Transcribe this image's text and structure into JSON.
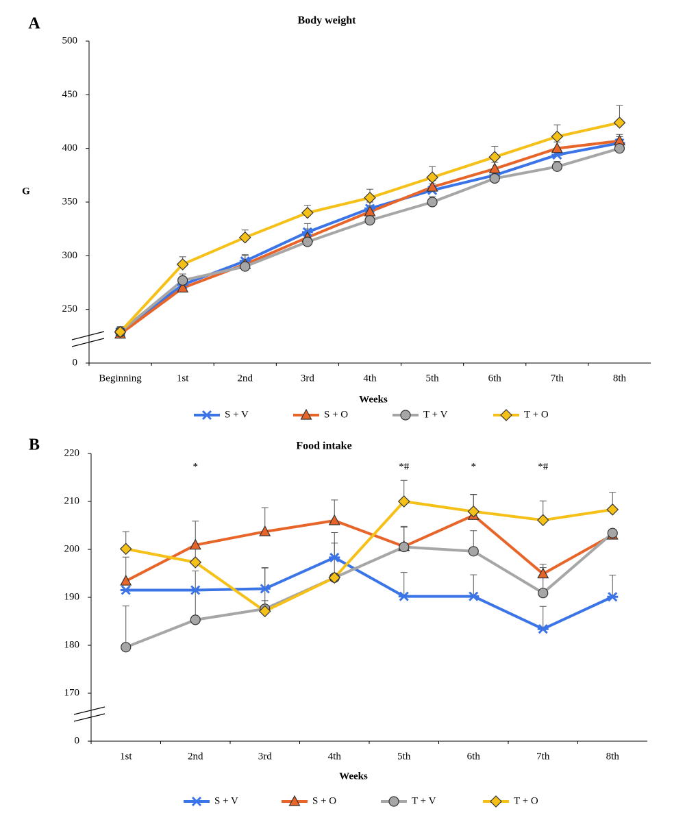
{
  "chart_data": [
    {
      "type": "line",
      "panel": "A",
      "title": "Body weight",
      "y_label": "G",
      "x_label": "Weeks",
      "categories": [
        "Beginning",
        "1st",
        "2nd",
        "3rd",
        "4th",
        "5th",
        "6th",
        "7th",
        "8th"
      ],
      "ylim": [
        0,
        500
      ],
      "yticks": [
        0,
        250,
        300,
        350,
        400,
        450,
        500
      ],
      "y_break": true,
      "grid": false,
      "series": [
        {
          "name": "S + V",
          "color": "#3b74e6",
          "marker": "asterisk",
          "values": [
            229,
            273,
            295,
            322,
            344,
            361,
            375,
            394,
            405
          ],
          "errors": [
            5,
            5,
            6,
            8,
            6,
            6,
            6,
            6,
            6
          ]
        },
        {
          "name": "S + O",
          "color": "#e8652a",
          "marker": "triangle",
          "values": [
            227,
            270,
            292,
            317,
            341,
            364,
            381,
            400,
            407
          ],
          "errors": [
            3,
            4,
            8,
            8,
            6,
            6,
            6,
            6,
            6
          ]
        },
        {
          "name": "T + V",
          "color": "#a6a6a6",
          "marker": "circle",
          "values": [
            229,
            277,
            290,
            313,
            333,
            350,
            372,
            383,
            400
          ],
          "errors": [
            4,
            6,
            6,
            6,
            5,
            5,
            5,
            5,
            5
          ]
        },
        {
          "name": "T + O",
          "color": "#f5c018",
          "marker": "diamond",
          "values": [
            229,
            292,
            317,
            340,
            354,
            373,
            392,
            411,
            424
          ],
          "errors": [
            4,
            7,
            7,
            7,
            8,
            10,
            10,
            11,
            16
          ]
        }
      ]
    },
    {
      "type": "line",
      "panel": "B",
      "title": "Food intake",
      "x_label": "Weeks",
      "categories": [
        "1st",
        "2nd",
        "3rd",
        "4th",
        "5th",
        "6th",
        "7th",
        "8th"
      ],
      "ylim": [
        0,
        220
      ],
      "yticks": [
        0,
        170,
        180,
        190,
        200,
        210,
        220
      ],
      "y_break": true,
      "grid": false,
      "series": [
        {
          "name": "S + V",
          "color": "#3b74e6",
          "marker": "asterisk",
          "values": [
            191.5,
            191.5,
            191.8,
            198.3,
            190.2,
            190.2,
            183.4,
            190.1
          ],
          "errors": [
            0,
            4,
            4.4,
            3,
            5,
            4.5,
            4.7,
            4.5
          ]
        },
        {
          "name": "S + O",
          "color": "#e8652a",
          "marker": "triangle",
          "values": [
            193.4,
            200.9,
            203.7,
            206,
            200.6,
            207.1,
            194.9,
            203
          ],
          "errors": [
            5,
            5,
            5,
            4.3,
            4,
            4.3,
            2,
            0
          ]
        },
        {
          "name": "T + V",
          "color": "#a6a6a6",
          "marker": "circle",
          "values": [
            179.6,
            185.3,
            187.6,
            194.1,
            200.5,
            199.6,
            190.9,
            203.4
          ],
          "errors": [
            8.6,
            6.5,
            8.5,
            9.4,
            4.3,
            4.3,
            5.3,
            0
          ]
        },
        {
          "name": "T + O",
          "color": "#f5c018",
          "marker": "diamond",
          "values": [
            200.1,
            197.3,
            187.1,
            194.1,
            210,
            207.9,
            206.1,
            208.3
          ],
          "errors": [
            3.6,
            3.8,
            2.2,
            0,
            4.4,
            3.6,
            4,
            3.6
          ]
        }
      ],
      "annotations": [
        {
          "text": "*",
          "category": "2nd"
        },
        {
          "text": "*#",
          "category": "5th"
        },
        {
          "text": "*",
          "category": "6th"
        },
        {
          "text": "*#",
          "category": "7th"
        }
      ]
    }
  ]
}
